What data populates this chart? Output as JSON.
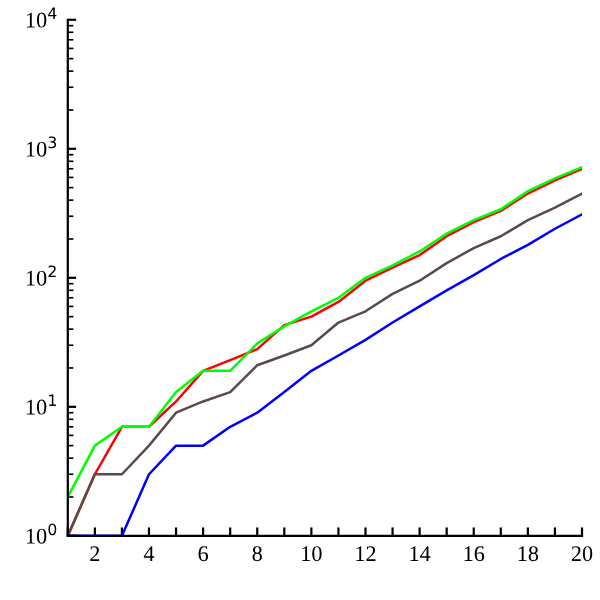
{
  "chart_data": {
    "type": "line",
    "log": "y",
    "grid": false,
    "legend": false,
    "marker": "none",
    "line_style": "solid",
    "x": [
      1,
      2,
      3,
      4,
      5,
      6,
      7,
      8,
      9,
      10,
      11,
      12,
      13,
      14,
      15,
      16,
      17,
      18,
      19,
      20
    ],
    "xlim": [
      1,
      20
    ],
    "xticks": [
      {
        "value": 1,
        "label": null
      },
      2,
      {
        "value": 3,
        "label": null
      },
      4,
      {
        "value": 5,
        "label": null
      },
      6,
      {
        "value": 7,
        "label": null
      },
      8,
      {
        "value": 9,
        "label": null
      },
      10,
      {
        "value": 11,
        "label": null
      },
      12,
      {
        "value": 13,
        "label": null
      },
      14,
      {
        "value": 15,
        "label": null
      },
      16,
      {
        "value": 17,
        "label": null
      },
      18,
      {
        "value": 19,
        "label": null
      },
      20
    ],
    "ylim": [
      1,
      10000
    ],
    "yticks": [
      {
        "value": 1,
        "label": "10$^{0}$"
      },
      {
        "value": 10,
        "label": "10$^{1}$"
      },
      {
        "value": 100,
        "label": "10$^{2}$"
      },
      {
        "value": 1000,
        "label": "10$^{3}$"
      },
      {
        "value": 10000,
        "label": "10$^{4}$"
      }
    ],
    "series": [
      {
        "color": "#ff0000",
        "values": [
          1,
          3,
          7,
          7,
          11,
          19,
          23,
          28,
          43,
          50,
          65,
          95,
          120,
          150,
          210,
          270,
          330,
          450,
          570,
          700
        ]
      },
      {
        "color": "#00ff00",
        "values": [
          2,
          5,
          7,
          7,
          13,
          19,
          19,
          31,
          42,
          55,
          70,
          100,
          125,
          160,
          220,
          280,
          340,
          470,
          590,
          720
        ]
      },
      {
        "color": "#5a4a4a",
        "values": [
          1,
          3,
          3,
          5,
          9,
          11,
          13,
          21,
          25,
          30,
          45,
          55,
          75,
          95,
          130,
          170,
          210,
          280,
          350,
          450
        ]
      },
      {
        "color": "#0000ff",
        "values": [
          1,
          1,
          1,
          3,
          5,
          5,
          7,
          9,
          13,
          19,
          25,
          33,
          45,
          60,
          80,
          105,
          140,
          180,
          240,
          310
        ]
      }
    ]
  }
}
